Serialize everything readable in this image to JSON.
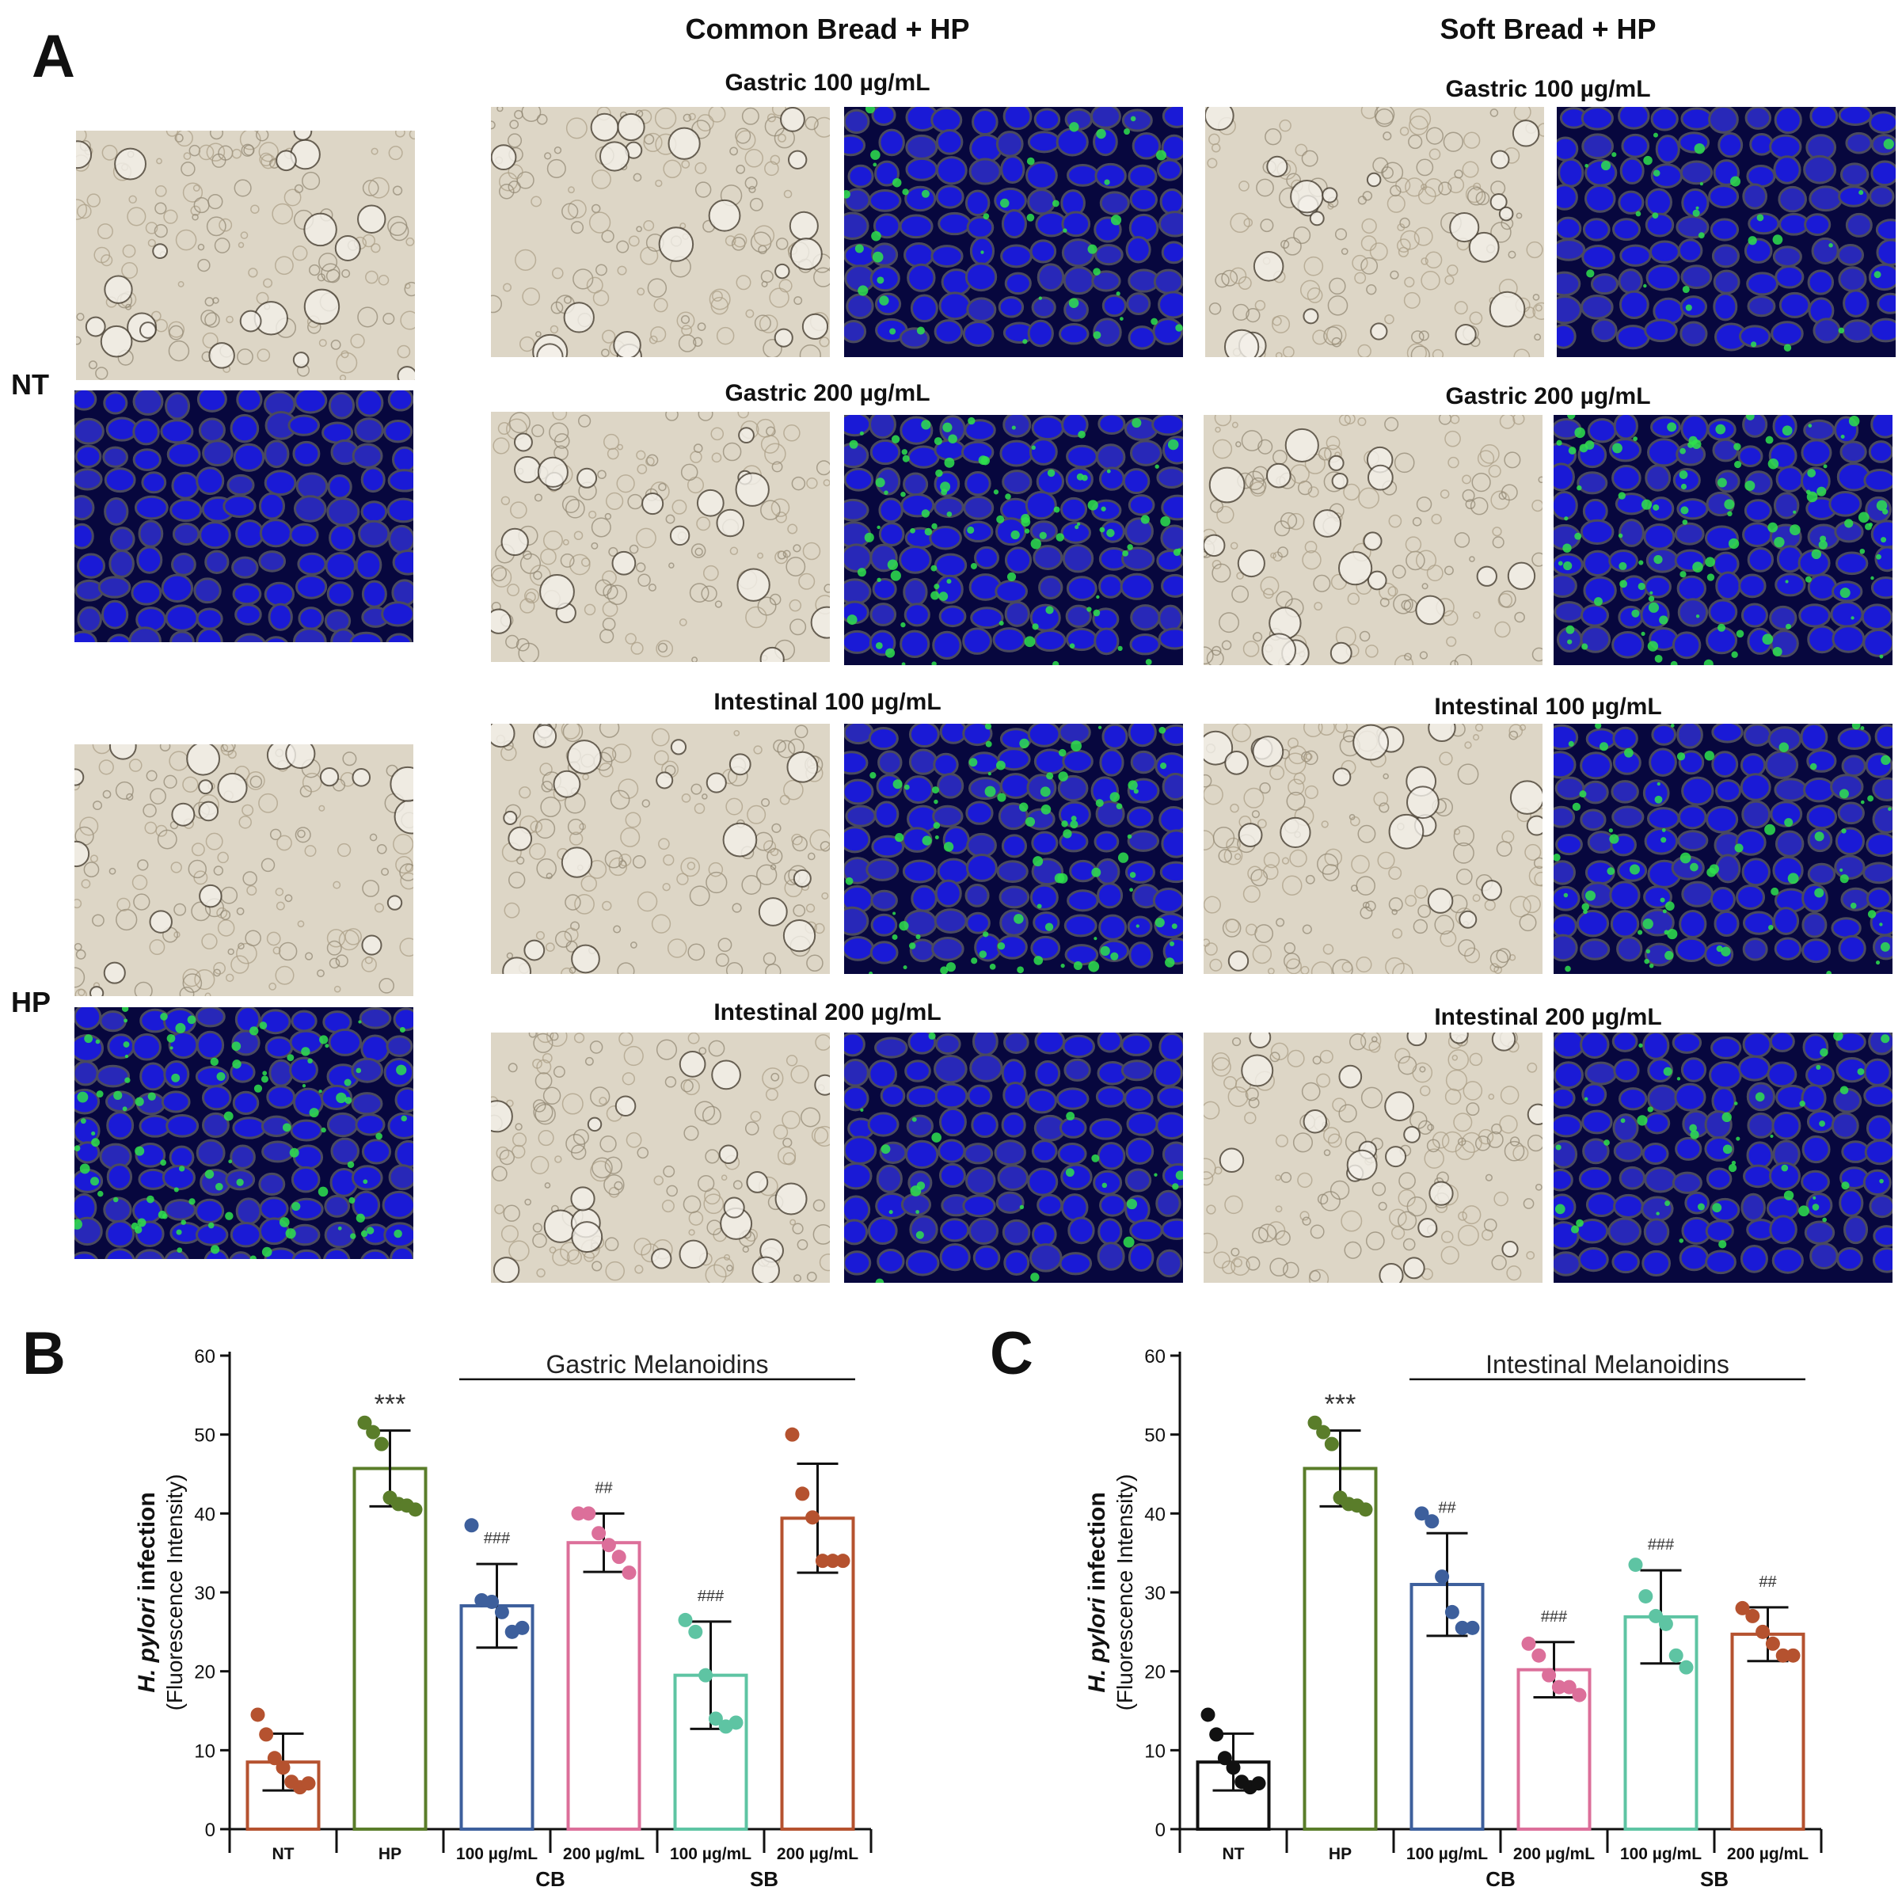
{
  "panel_a": {
    "letter": "A",
    "col_titles": [
      "Common Bread + HP",
      "Soft Bread + HP"
    ],
    "row_labels": [
      "NT",
      "HP"
    ],
    "conditions_cb": [
      "Gastric 100 µg/mL",
      "Gastric 200 µg/mL",
      "Intestinal 100 µg/mL",
      "Intestinal 200 µg/mL"
    ],
    "conditions_sb": [
      "Gastric 100 µg/mL",
      "Gastric 200 µg/mL",
      "Intestinal 100 µg/mL",
      "Intestinal 200 µg/mL"
    ],
    "green_level": {
      "nt": 0.0,
      "hp": 0.85,
      "cb": [
        0.35,
        0.8,
        0.7,
        0.2
      ],
      "sb": [
        0.25,
        0.9,
        0.6,
        0.4
      ]
    }
  },
  "colors": {
    "NT_B": "#b5522f",
    "NT_C": "#111111",
    "HP": "#5a7d2a",
    "CB100": "#3d5f9c",
    "CB200": "#dc6f9a",
    "SB100": "#5ec4a3",
    "SB200": "#b5522f"
  },
  "chart_data": [
    {
      "letter": "B",
      "type": "bar",
      "title": "",
      "ylabel_italic": "H. pylori",
      "ylabel_rest": " infection",
      "ylabel_line2": "(Fluorescence Intensity)",
      "ylim": [
        0,
        60
      ],
      "yticks": [
        0,
        10,
        20,
        30,
        40,
        50,
        60
      ],
      "categories": [
        "NT",
        "HP",
        "100 µg/mL",
        "200 µg/mL",
        "100 µg/mL",
        "200 µg/mL"
      ],
      "groups": [
        "CB",
        "SB"
      ],
      "bracket_label": "Gastric Melanoidins",
      "values": [
        8.5,
        45.7,
        28.3,
        36.3,
        19.5,
        39.4
      ],
      "errors": [
        3.6,
        4.8,
        5.3,
        3.7,
        6.8,
        6.9
      ],
      "points": [
        [
          14.5,
          12.0,
          9.0,
          7.8,
          6.0,
          5.3,
          5.8
        ],
        [
          51.5,
          50.3,
          48.8,
          42.0,
          41.2,
          41.0,
          40.5
        ],
        [
          38.5,
          29.0,
          28.8,
          27.5,
          25.0,
          25.5
        ],
        [
          40.0,
          40.0,
          37.5,
          36.0,
          34.5,
          32.5
        ],
        [
          26.5,
          25.0,
          19.5,
          14.0,
          13.0,
          13.5
        ],
        [
          50.0,
          42.5,
          39.5,
          34.0,
          34.0,
          34.0
        ]
      ],
      "annotations": [
        "",
        "***",
        "###",
        "##",
        "###",
        ""
      ],
      "series_colors": [
        "NT_B",
        "HP",
        "CB100",
        "CB200",
        "SB100",
        "SB200"
      ]
    },
    {
      "letter": "C",
      "type": "bar",
      "title": "",
      "ylabel_italic": "H. pylori",
      "ylabel_rest": " infection",
      "ylabel_line2": "(Fluorescence Intensity)",
      "ylim": [
        0,
        60
      ],
      "yticks": [
        0,
        10,
        20,
        30,
        40,
        50,
        60
      ],
      "categories": [
        "NT",
        "HP",
        "100 µg/mL",
        "200 µg/mL",
        "100 µg/mL",
        "200 µg/mL"
      ],
      "groups": [
        "CB",
        "SB"
      ],
      "bracket_label": "Intestinal Melanoidins",
      "values": [
        8.5,
        45.7,
        31.0,
        20.2,
        26.9,
        24.7
      ],
      "errors": [
        3.6,
        4.8,
        6.5,
        3.5,
        5.9,
        3.4
      ],
      "points": [
        [
          14.5,
          12.0,
          9.0,
          7.8,
          6.0,
          5.3,
          5.8
        ],
        [
          51.5,
          50.3,
          48.8,
          42.0,
          41.2,
          41.0,
          40.5
        ],
        [
          40.0,
          39.0,
          32.0,
          27.5,
          25.5,
          25.5
        ],
        [
          23.5,
          22.0,
          19.5,
          18.0,
          18.0,
          17.0
        ],
        [
          33.5,
          29.5,
          27.0,
          26.0,
          22.0,
          20.5
        ],
        [
          28.0,
          27.0,
          25.0,
          23.5,
          22.0,
          22.0
        ]
      ],
      "annotations": [
        "",
        "***",
        "##",
        "###",
        "###",
        "##"
      ],
      "series_colors": [
        "NT_C",
        "HP",
        "CB100",
        "CB200",
        "SB100",
        "SB200"
      ]
    }
  ]
}
